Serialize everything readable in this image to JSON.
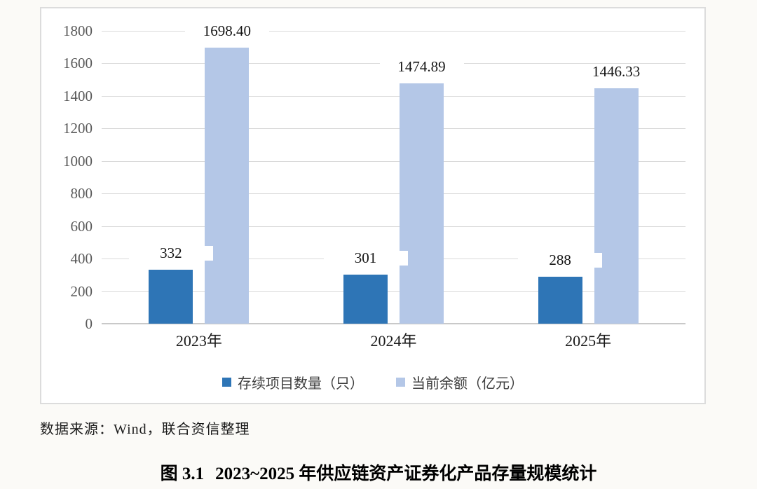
{
  "page": {
    "source_note": "数据来源：Wind，联合资信整理",
    "caption": {
      "label": "图 3.1",
      "title": "2023~2025 年供应链资产证券化产品存量规模统计"
    }
  },
  "chart_data": {
    "type": "bar",
    "title": "",
    "xlabel": "",
    "ylabel": "",
    "categories": [
      "2023年",
      "2024年",
      "2025年"
    ],
    "series": [
      {
        "name": "存续项目数量（只）",
        "color": "#2E75B6",
        "values": [
          332,
          301,
          288
        ],
        "labels": [
          "332",
          "301",
          "288"
        ]
      },
      {
        "name": "当前余额（亿元）",
        "color": "#B4C7E7",
        "values": [
          1698.4,
          1474.89,
          1446.33
        ],
        "labels": [
          "1698.40",
          "1474.89",
          "1446.33"
        ]
      }
    ],
    "ylim": [
      0,
      1800
    ],
    "yticks": [
      0,
      200,
      400,
      600,
      800,
      1000,
      1200,
      1400,
      1600,
      1800
    ],
    "grid": true,
    "legend_position": "bottom"
  },
  "colors": {
    "grid": "#d9d9d9",
    "axis": "#c9c9c9",
    "tick_label": "#595959",
    "frame_border": "#dcdcdc",
    "background": "#fbfaf7"
  }
}
